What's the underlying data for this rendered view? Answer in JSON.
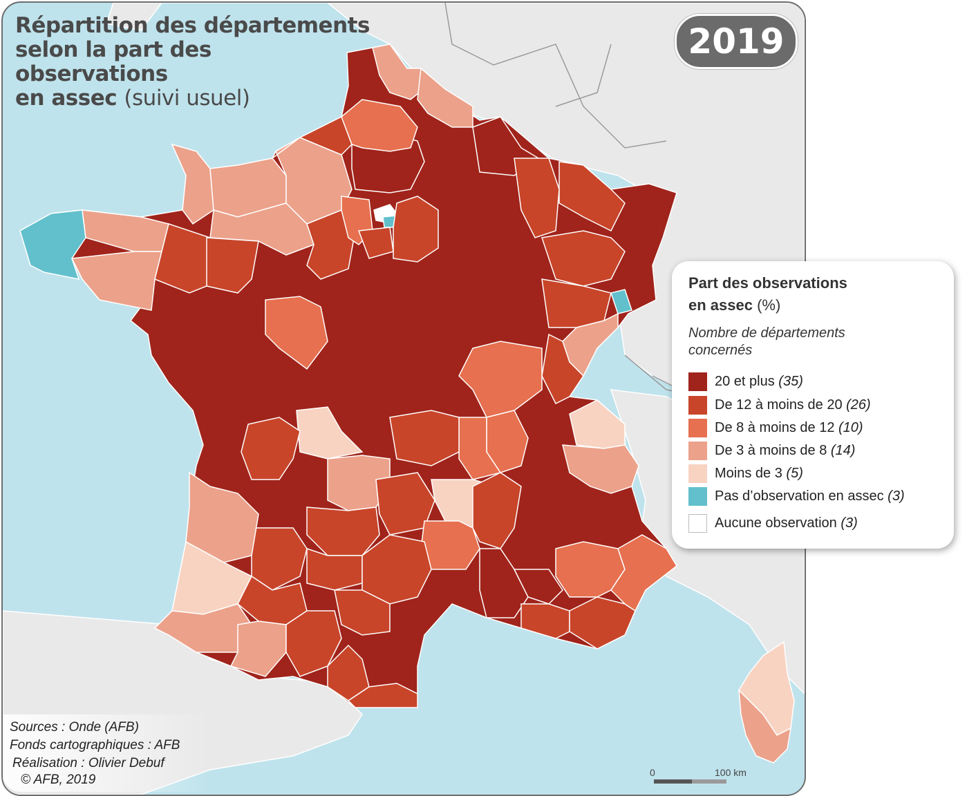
{
  "title": {
    "bold": "Répartition des départements selon la part des observations en assec",
    "line1": "Répartition des départements",
    "line2": "selon la part des",
    "line3": "observations",
    "line4_bold": "en assec",
    "line4_light": "(suivi usuel)"
  },
  "year": "2019",
  "legend": {
    "title_bold": "Part des observations",
    "title_bold2": "en assec",
    "title_unit": "(%)",
    "subtitle_line1": "Nombre de départements",
    "subtitle_line2": "concernés",
    "classes": [
      {
        "label": "20 et plus",
        "count": "(35)",
        "color": "#a0241b"
      },
      {
        "label": "De 12 à moins de 20",
        "count": "(26)",
        "color": "#c8452a"
      },
      {
        "label": "De 8 à moins de 12",
        "count": "(10)",
        "color": "#e6704f"
      },
      {
        "label": "De 3 à moins de 8",
        "count": "(14)",
        "color": "#eca18a"
      },
      {
        "label": "Moins de 3",
        "count": "(5)",
        "color": "#f8d3c2"
      },
      {
        "label": "Pas d’observation en assec",
        "count": "(3)",
        "color": "#62c0cc"
      },
      {
        "label": "Aucune observation",
        "count": "(3)",
        "color": "#ffffff"
      }
    ]
  },
  "sources": {
    "line1": "Sources : Onde (AFB)",
    "line2": "Fonds cartographiques : AFB",
    "line3": "Réalisation : Olivier Debuf",
    "line4": "© AFB, 2019"
  },
  "scale": {
    "zero": "0",
    "distance": "100 km"
  },
  "colors": {
    "sea": "#bfe3ec",
    "neighbour_land": "#e9e9e9",
    "class_20_plus": "#a0241b",
    "class_12_20": "#c8452a",
    "class_8_12": "#e6704f",
    "class_3_8": "#eca18a",
    "class_lt3": "#f8d3c2",
    "class_none_assec": "#62c0cc",
    "class_no_obs": "#ffffff"
  }
}
